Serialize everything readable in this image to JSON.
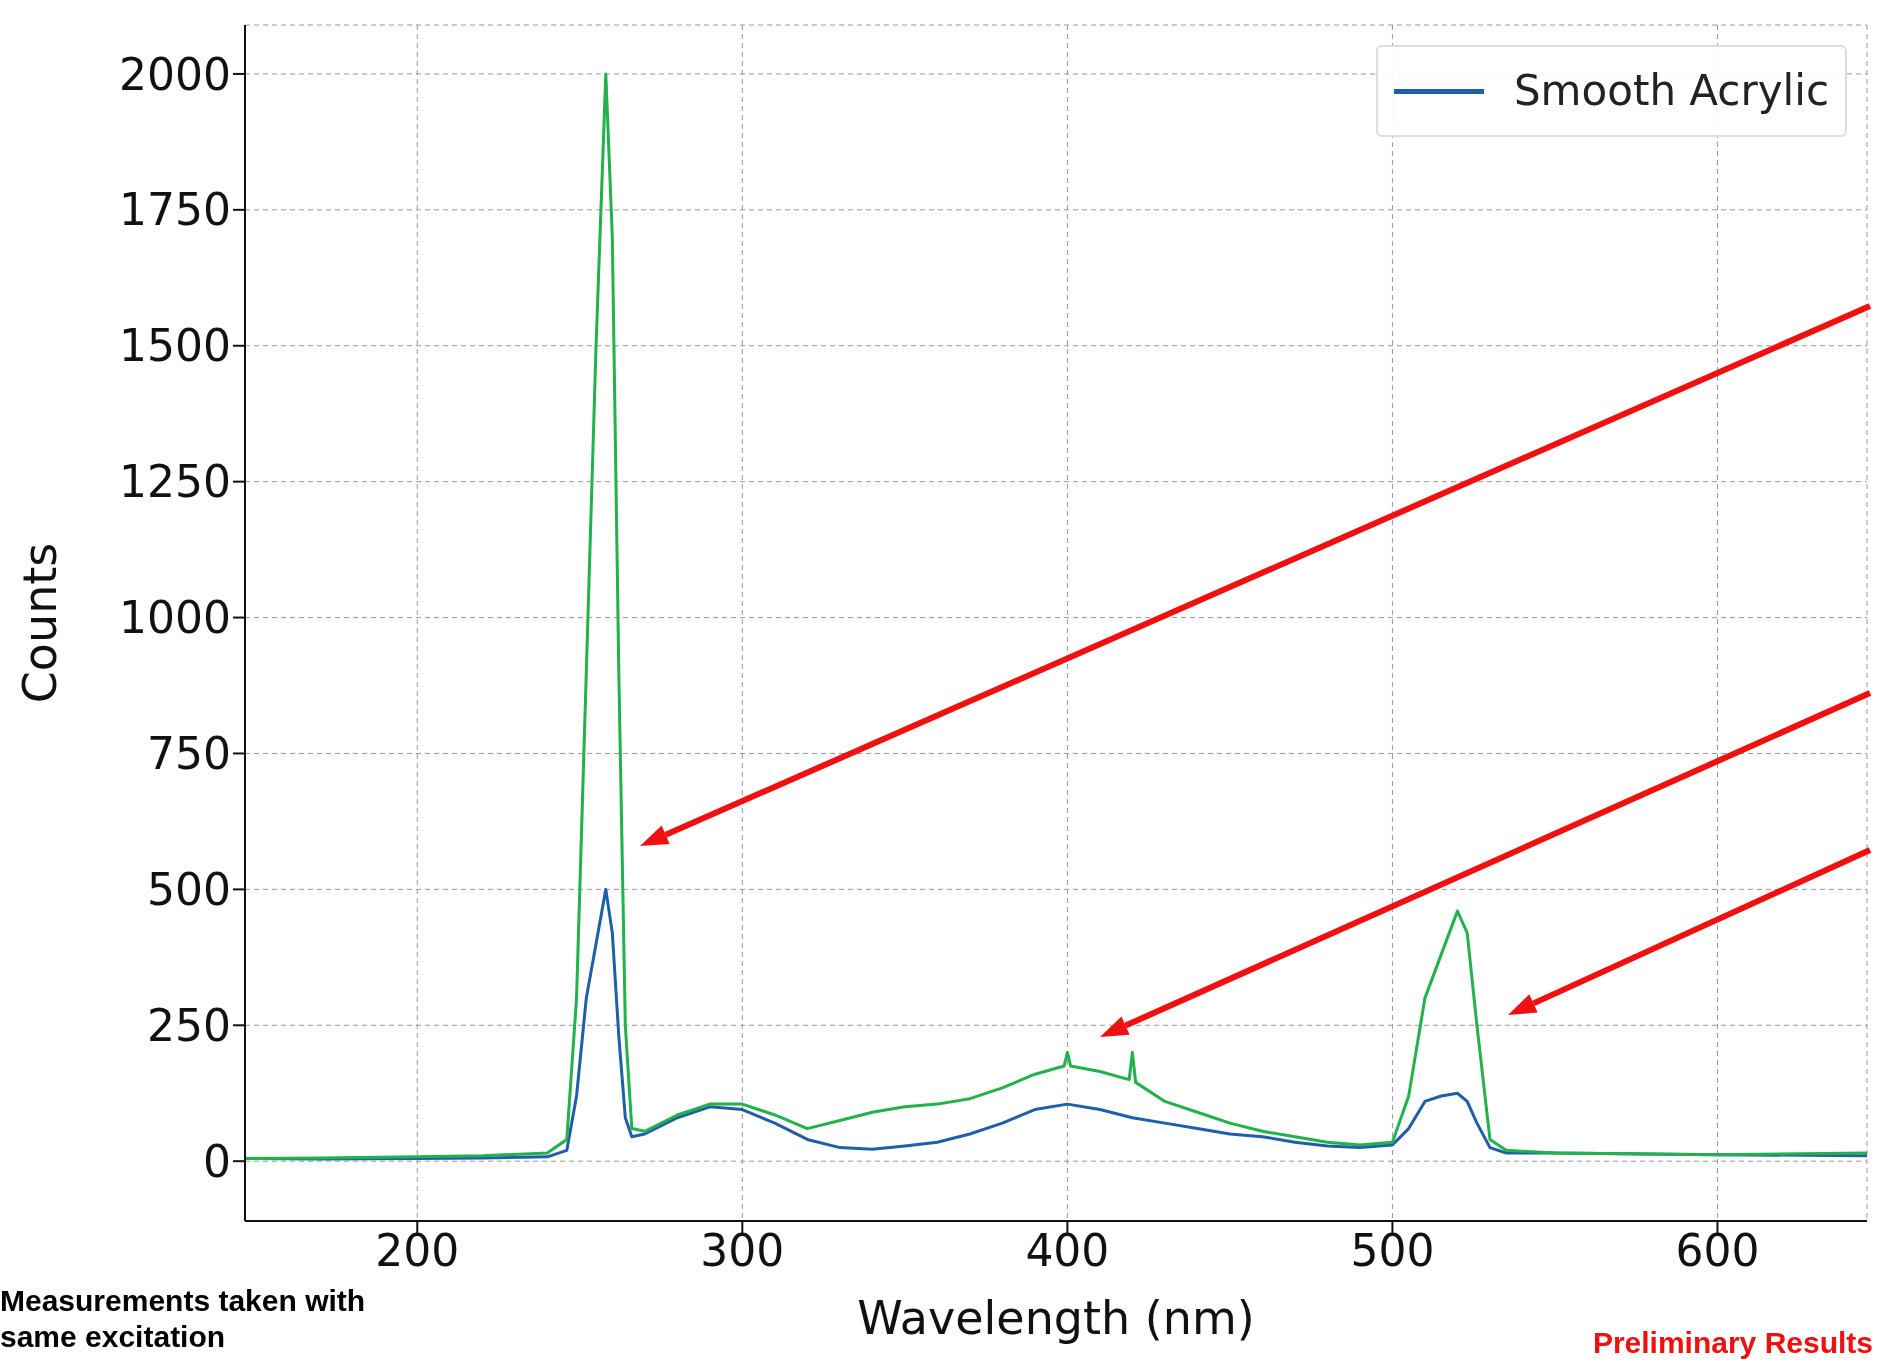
{
  "chart_data": {
    "type": "line",
    "xlabel": "Wavelength (nm)",
    "ylabel": "Counts",
    "annotations": [
      "Measurements taken with same excitation",
      "Preliminary Results"
    ],
    "xlim": [
      147,
      646
    ],
    "xticks": [
      200,
      300,
      400,
      500,
      600
    ],
    "ylim": [
      -110,
      2090
    ],
    "yticks": [
      0,
      250,
      500,
      750,
      1000,
      1250,
      1500,
      1750,
      2000
    ],
    "grid": true,
    "legend": "top right",
    "marker": "none",
    "line_style": "solid",
    "series": [
      {
        "name": "Smooth Acrylic",
        "color": "#1f5ea8",
        "x": [
          147,
          170,
          200,
          220,
          240,
          246,
          249,
          252,
          255,
          258,
          260,
          262,
          264,
          266,
          270,
          280,
          290,
          300,
          310,
          320,
          330,
          340,
          350,
          360,
          370,
          380,
          390,
          400,
          410,
          420,
          430,
          440,
          450,
          460,
          470,
          480,
          490,
          500,
          505,
          510,
          515,
          520,
          523,
          526,
          530,
          535,
          550,
          600,
          646
        ],
        "values": [
          5,
          4,
          5,
          6,
          8,
          20,
          120,
          300,
          400,
          500,
          420,
          230,
          80,
          45,
          50,
          80,
          100,
          95,
          70,
          40,
          25,
          22,
          28,
          35,
          50,
          70,
          95,
          105,
          95,
          80,
          70,
          60,
          50,
          45,
          35,
          28,
          25,
          30,
          60,
          110,
          120,
          125,
          110,
          70,
          25,
          15,
          15,
          12,
          10
        ]
      },
      {
        "color": "#21b24b",
        "x": [
          147,
          170,
          200,
          220,
          240,
          246,
          249,
          252,
          255,
          258,
          260,
          262,
          264,
          266,
          270,
          280,
          290,
          300,
          310,
          320,
          330,
          340,
          350,
          360,
          370,
          380,
          390,
          399,
          400,
          401,
          410,
          419,
          420,
          421,
          430,
          440,
          450,
          460,
          470,
          480,
          490,
          500,
          505,
          510,
          515,
          520,
          523,
          526,
          530,
          535,
          550,
          600,
          646
        ],
        "values": [
          5,
          6,
          8,
          10,
          15,
          40,
          300,
          900,
          1500,
          2000,
          1700,
          900,
          250,
          60,
          55,
          85,
          105,
          105,
          85,
          60,
          75,
          90,
          100,
          105,
          115,
          135,
          160,
          175,
          200,
          175,
          165,
          150,
          200,
          145,
          110,
          90,
          70,
          55,
          45,
          35,
          30,
          35,
          120,
          300,
          380,
          460,
          420,
          250,
          40,
          20,
          15,
          12,
          15
        ]
      }
    ]
  }
}
